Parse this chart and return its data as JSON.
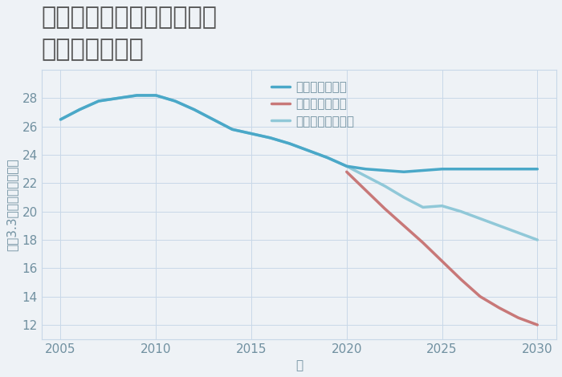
{
  "title": "兵庫県姫路市飾磨区高町の\n土地の価格推移",
  "xlabel": "年",
  "ylabel": "坪（3.3㎡）単価（万円）",
  "background_color": "#eef2f6",
  "plot_bg_color": "#eef2f6",
  "grid_color": "#c8d8e8",
  "ylim": [
    11,
    30
  ],
  "yticks": [
    12,
    14,
    16,
    18,
    20,
    22,
    24,
    26,
    28
  ],
  "xlim": [
    2004,
    2031
  ],
  "xticks": [
    2005,
    2010,
    2015,
    2020,
    2025,
    2030
  ],
  "good_scenario": {
    "label": "グッドシナリオ",
    "color": "#4aa8c8",
    "x": [
      2005,
      2006,
      2007,
      2008,
      2009,
      2010,
      2011,
      2012,
      2013,
      2014,
      2015,
      2016,
      2017,
      2018,
      2019,
      2020,
      2021,
      2022,
      2023,
      2024,
      2025,
      2026,
      2027,
      2028,
      2029,
      2030
    ],
    "y": [
      26.5,
      27.2,
      27.8,
      28.0,
      28.2,
      28.2,
      27.8,
      27.2,
      26.5,
      25.8,
      25.5,
      25.2,
      24.8,
      24.3,
      23.8,
      23.2,
      23.0,
      22.9,
      22.8,
      22.9,
      23.0,
      23.0,
      23.0,
      23.0,
      23.0,
      23.0
    ],
    "linewidth": 2.5
  },
  "bad_scenario": {
    "label": "バッドシナリオ",
    "color": "#c87878",
    "x": [
      2020,
      2021,
      2022,
      2023,
      2024,
      2025,
      2026,
      2027,
      2028,
      2029,
      2030
    ],
    "y": [
      22.8,
      21.5,
      20.2,
      19.0,
      17.8,
      16.5,
      15.2,
      14.0,
      13.2,
      12.5,
      12.0
    ],
    "linewidth": 2.5
  },
  "normal_scenario": {
    "label": "ノーマルシナリオ",
    "color": "#90c8d8",
    "x": [
      2005,
      2006,
      2007,
      2008,
      2009,
      2010,
      2011,
      2012,
      2013,
      2014,
      2015,
      2016,
      2017,
      2018,
      2019,
      2020,
      2021,
      2022,
      2023,
      2024,
      2025,
      2026,
      2027,
      2028,
      2029,
      2030
    ],
    "y": [
      26.5,
      27.2,
      27.8,
      28.0,
      28.2,
      28.2,
      27.8,
      27.2,
      26.5,
      25.8,
      25.5,
      25.2,
      24.8,
      24.3,
      23.8,
      23.2,
      22.5,
      21.8,
      21.0,
      20.3,
      20.4,
      20.0,
      19.5,
      19.0,
      18.5,
      18.0
    ],
    "linewidth": 2.5
  },
  "title_fontsize": 22,
  "label_fontsize": 11,
  "tick_fontsize": 11,
  "legend_fontsize": 11,
  "title_color": "#555555",
  "axis_color": "#7090a0",
  "tick_color": "#7090a0"
}
